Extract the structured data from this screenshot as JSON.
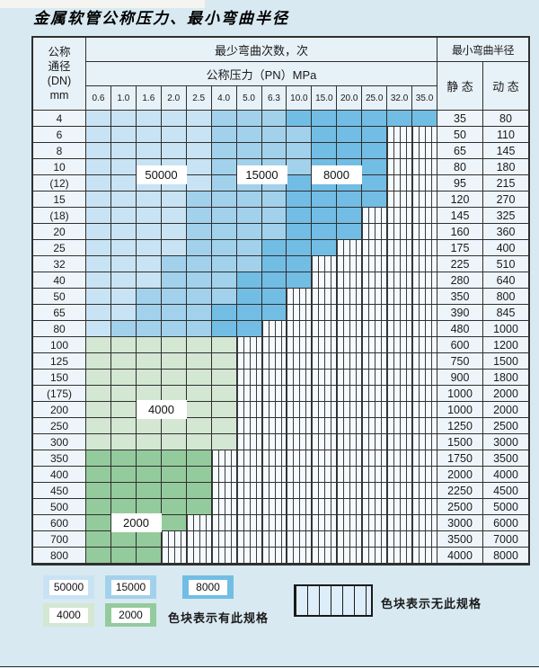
{
  "title": "金属软管公称压力、最小弯曲半径",
  "colors": {
    "c50": "#c8e3f4",
    "c15": "#a2d1ec",
    "c8": "#72bde4",
    "g4": "#d3e7d3",
    "g2": "#94cb9d"
  },
  "header": {
    "dn_lines": [
      "公称",
      "通径",
      "(DN)",
      "mm"
    ],
    "bend_cycles_label": "最少弯曲次数，次",
    "pressure_label": "公称压力（PN）MPa",
    "radius_label": "最小弯曲半径",
    "static_label": "静 态",
    "dynamic_label": "动 态",
    "pressures": [
      "0.6",
      "1.0",
      "1.6",
      "2.0",
      "2.5",
      "4.0",
      "5.0",
      "6.3",
      "10.0",
      "15.0",
      "20.0",
      "25.0",
      "32.0",
      "35.0"
    ]
  },
  "rows": [
    {
      "dn": "4",
      "st": "35",
      "dy": "80",
      "type": "b",
      "s15": 5,
      "s8": 8,
      "end": 13
    },
    {
      "dn": "6",
      "st": "50",
      "dy": "110",
      "type": "b",
      "s15": 5,
      "s8": 9,
      "end": 11
    },
    {
      "dn": "8",
      "st": "65",
      "dy": "145",
      "type": "b",
      "s15": 5,
      "s8": 9,
      "end": 11
    },
    {
      "dn": "10",
      "st": "80",
      "dy": "180",
      "type": "b",
      "s15": 5,
      "s8": 9,
      "end": 11
    },
    {
      "dn": "(12)",
      "st": "95",
      "dy": "215",
      "type": "b",
      "s15": 5,
      "s8": 8,
      "end": 11
    },
    {
      "dn": "15",
      "st": "120",
      "dy": "270",
      "type": "b",
      "s15": 4,
      "s8": 8,
      "end": 11
    },
    {
      "dn": "(18)",
      "st": "145",
      "dy": "325",
      "type": "b",
      "s15": 4,
      "s8": 8,
      "end": 10
    },
    {
      "dn": "20",
      "st": "160",
      "dy": "360",
      "type": "b",
      "s15": 4,
      "s8": 8,
      "end": 10
    },
    {
      "dn": "25",
      "st": "175",
      "dy": "400",
      "type": "b",
      "s15": 4,
      "s8": 7,
      "end": 9
    },
    {
      "dn": "32",
      "st": "225",
      "dy": "510",
      "type": "b",
      "s15": 3,
      "s8": 7,
      "end": 8
    },
    {
      "dn": "40",
      "st": "280",
      "dy": "640",
      "type": "b",
      "s15": 3,
      "s8": 6,
      "end": 8
    },
    {
      "dn": "50",
      "st": "350",
      "dy": "800",
      "type": "b",
      "s15": 2,
      "s8": 6,
      "end": 7
    },
    {
      "dn": "65",
      "st": "390",
      "dy": "845",
      "type": "b",
      "s15": 2,
      "s8": 5,
      "end": 7
    },
    {
      "dn": "80",
      "st": "480",
      "dy": "1000",
      "type": "b",
      "s15": 1,
      "s8": 5,
      "end": 6
    },
    {
      "dn": "100",
      "st": "600",
      "dy": "1200",
      "type": "g4",
      "end": 5
    },
    {
      "dn": "125",
      "st": "750",
      "dy": "1500",
      "type": "g4",
      "end": 5
    },
    {
      "dn": "150",
      "st": "900",
      "dy": "1800",
      "type": "g4",
      "end": 5
    },
    {
      "dn": "(175)",
      "st": "1000",
      "dy": "2000",
      "type": "g4",
      "end": 5
    },
    {
      "dn": "200",
      "st": "1000",
      "dy": "2000",
      "type": "g4",
      "end": 5
    },
    {
      "dn": "250",
      "st": "1250",
      "dy": "2500",
      "type": "g4",
      "end": 5
    },
    {
      "dn": "300",
      "st": "1500",
      "dy": "3000",
      "type": "g4",
      "end": 5
    },
    {
      "dn": "350",
      "st": "1750",
      "dy": "3500",
      "type": "g2",
      "end": 4
    },
    {
      "dn": "400",
      "st": "2000",
      "dy": "4000",
      "type": "g2",
      "end": 4
    },
    {
      "dn": "450",
      "st": "2250",
      "dy": "4500",
      "type": "g2",
      "end": 4
    },
    {
      "dn": "500",
      "st": "2500",
      "dy": "5000",
      "type": "g2",
      "end": 4
    },
    {
      "dn": "600",
      "st": "3000",
      "dy": "6000",
      "type": "g2",
      "end": 3
    },
    {
      "dn": "700",
      "st": "3500",
      "dy": "7000",
      "type": "g2",
      "end": 2
    },
    {
      "dn": "800",
      "st": "4000",
      "dy": "8000",
      "type": "g2",
      "end": 2
    }
  ],
  "overlays": [
    {
      "text": "50000",
      "row_a": "10",
      "row_b": "(12)",
      "col_a": 2,
      "col_b": 3
    },
    {
      "text": "15000",
      "row_a": "10",
      "row_b": "(12)",
      "col_a": 6,
      "col_b": 7
    },
    {
      "text": "8000",
      "row_a": "10",
      "row_b": "(12)",
      "col_a": 9,
      "col_b": 10
    },
    {
      "text": "4000",
      "row_a": "200",
      "row_b": "",
      "col_a": 2,
      "col_b": 3
    },
    {
      "text": "2000",
      "row_a": "600",
      "row_b": "",
      "col_a": 1,
      "col_b": 2
    }
  ],
  "legend": {
    "swatches": [
      {
        "label": "50000",
        "key": "c50"
      },
      {
        "label": "15000",
        "key": "c15"
      },
      {
        "label": "8000",
        "key": "c8"
      },
      {
        "label": "4000",
        "key": "g4"
      },
      {
        "label": "2000",
        "key": "g2"
      }
    ],
    "has_spec_text": "色块表示有此规格",
    "no_spec_text": "色块表示无此规格"
  }
}
